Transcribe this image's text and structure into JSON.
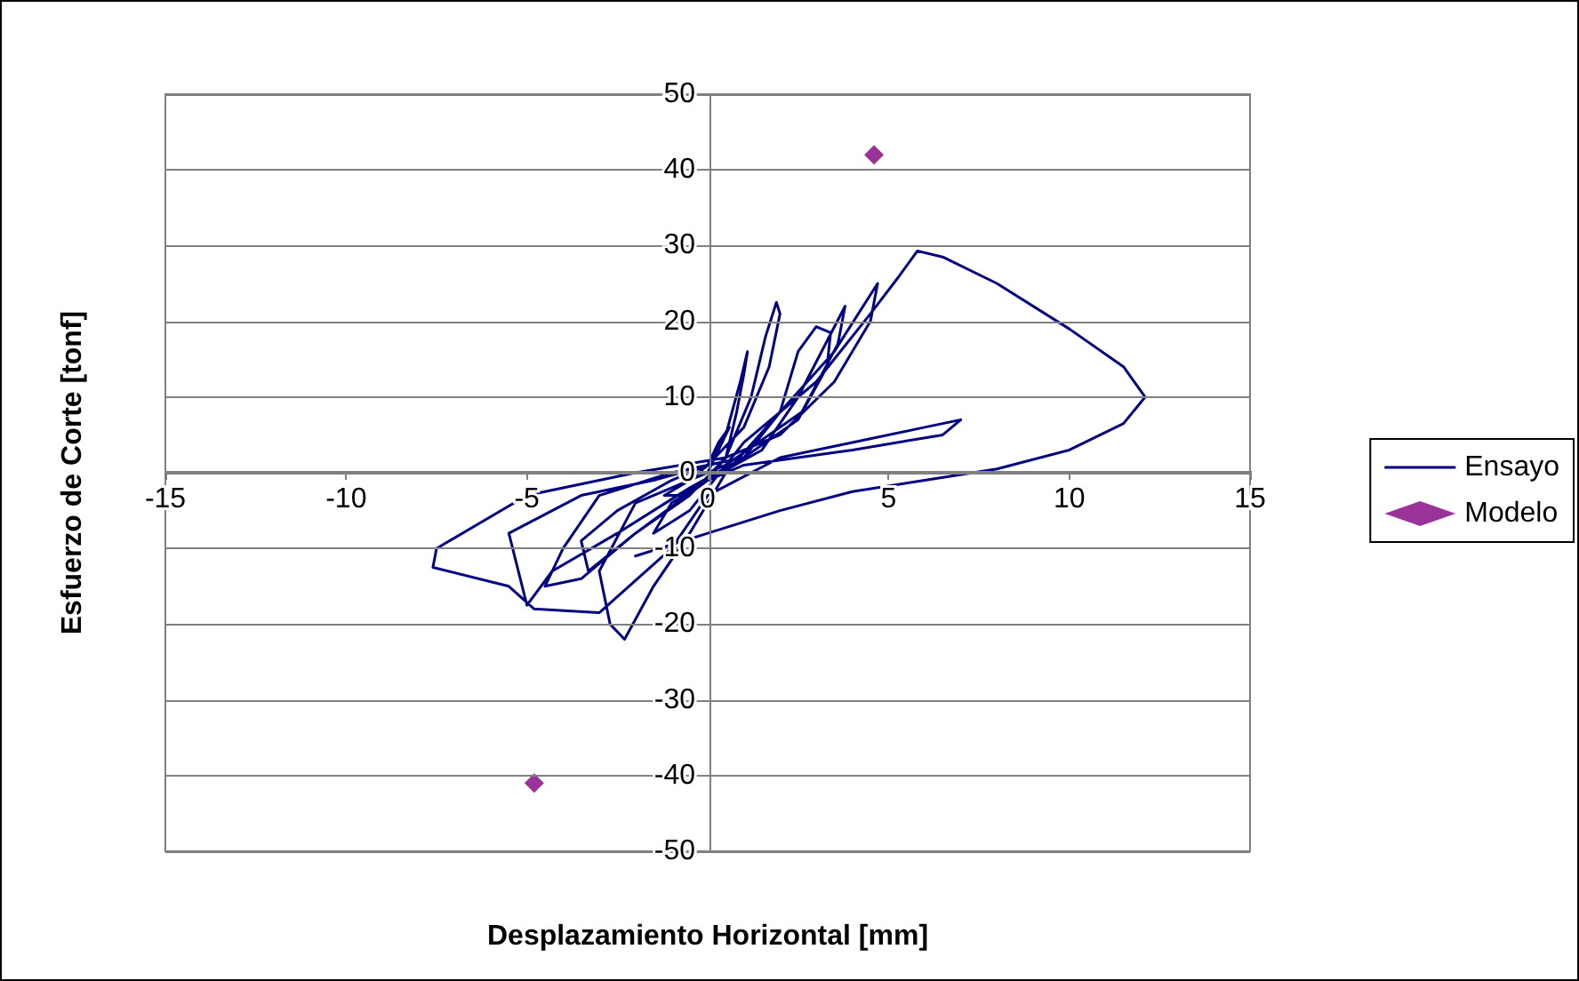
{
  "chart_data": {
    "type": "line",
    "xlabel": "Desplazamiento Horizontal [mm]",
    "ylabel": "Esfuerzo de Corte [tonf]",
    "xlim": [
      -15,
      15
    ],
    "xticks": [
      -15,
      -10,
      -5,
      0,
      5,
      10,
      15
    ],
    "ylim": [
      -50,
      50
    ],
    "yticks": [
      -50,
      -40,
      -30,
      -20,
      -10,
      0,
      10,
      20,
      30,
      40,
      50
    ],
    "grid": "y",
    "legend": "right",
    "marker": "none",
    "line_style": "solid",
    "series": [
      {
        "name": "Ensayo",
        "type": "line",
        "color": "#000080",
        "x": [
          0,
          0.3,
          0.6,
          0.3,
          0,
          -0.5,
          -1.2,
          -0.8,
          0,
          0.5,
          0.8,
          1.0,
          1.1,
          0.9,
          0.5,
          0,
          -1,
          -2.5,
          -3.5,
          -3.3,
          -2,
          -0.5,
          0.5,
          1.2,
          1.6,
          1.9,
          2.0,
          1.7,
          1.0,
          0,
          -1.5,
          -3.5,
          -5.5,
          -5.0,
          -4.3,
          -2.5,
          -0.5,
          1,
          2,
          2.5,
          3.0,
          3.4,
          3.3,
          2.5,
          1,
          -1,
          -3,
          -4,
          -4.5,
          -3.5,
          -2,
          0,
          1.5,
          2.5,
          3.8,
          3.6,
          2.6,
          0.5,
          -2,
          -3,
          -2.7,
          -2.3,
          -1.5,
          -0.5,
          0.5,
          2,
          3.5,
          4.7,
          4.5,
          3.5,
          2,
          0.5,
          -2,
          -5,
          -7.5,
          -7.6,
          -5.5,
          -4.8,
          -3,
          -1,
          0,
          2,
          4,
          6,
          7,
          6.5,
          4,
          1,
          0,
          -1,
          -1.5,
          -0.5,
          1,
          3,
          4.5,
          5.3,
          5.8,
          6.5,
          8,
          10,
          11.5,
          12.1,
          11.5,
          10,
          8,
          6,
          4,
          2,
          0,
          -2
        ],
        "values": [
          0,
          3,
          6,
          4,
          1,
          -1,
          -3,
          -3,
          -1,
          2,
          8,
          13,
          16,
          12,
          5,
          1,
          -1,
          -5,
          -9,
          -13,
          -8,
          -3,
          2,
          10,
          18,
          22.5,
          21,
          14,
          6,
          1,
          -1,
          -3,
          -8,
          -17.5,
          -13,
          -8,
          -2,
          2,
          8,
          16,
          19.3,
          18.5,
          14,
          7,
          2,
          0,
          -3,
          -10,
          -15,
          -14,
          -8,
          -1,
          3,
          10,
          22,
          17,
          8,
          1,
          -4,
          -13,
          -20,
          -22,
          -15,
          -8,
          0,
          8,
          16,
          25,
          20,
          12,
          5,
          2,
          0,
          -3,
          -10,
          -12.5,
          -15,
          -18,
          -18.5,
          -10,
          -3,
          2,
          4,
          6,
          7,
          5,
          3,
          1,
          -1,
          -4,
          -8,
          -5,
          4,
          12,
          21,
          26,
          29.3,
          28.5,
          25,
          19,
          14,
          10,
          6.5,
          3,
          0.5,
          -1,
          -2.5,
          -5,
          -8,
          -11
        ]
      },
      {
        "name": "Modelo",
        "type": "scatter",
        "marker": "diamond",
        "color": "#800080",
        "x": [
          4.6,
          -4.8
        ],
        "values": [
          42,
          -41
        ]
      }
    ]
  }
}
